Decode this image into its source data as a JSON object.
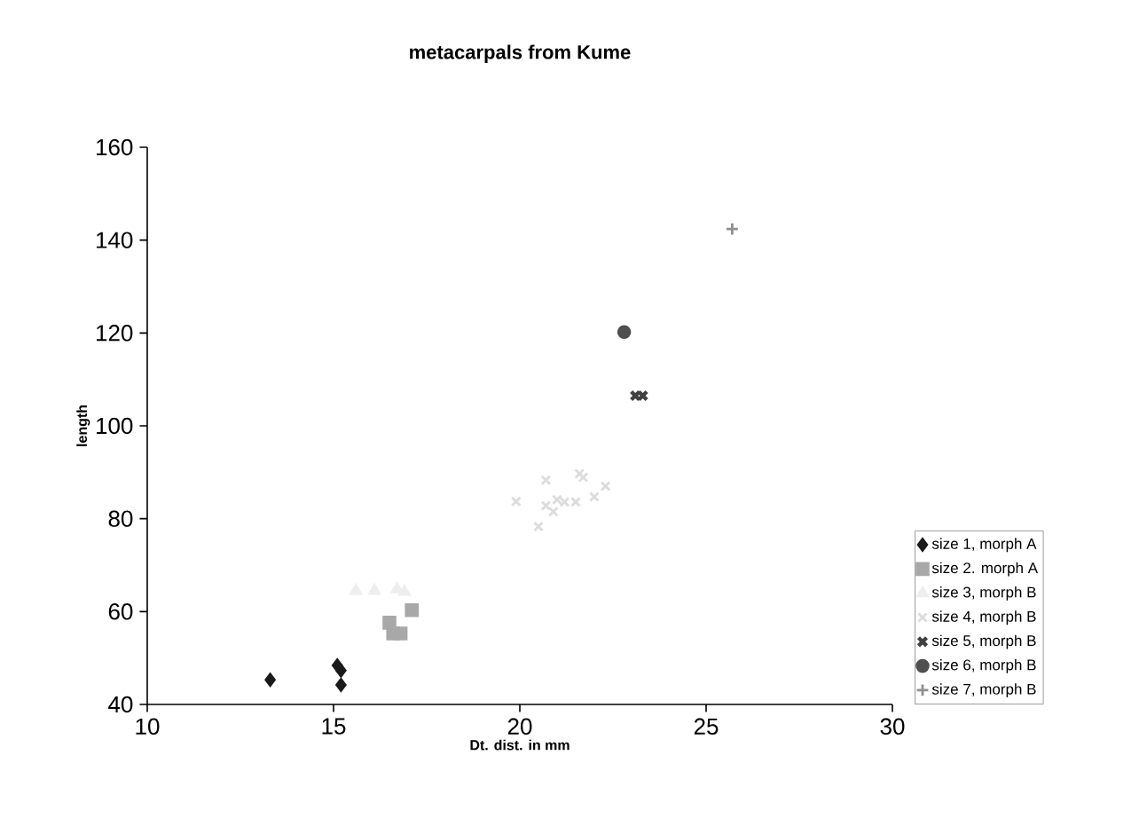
{
  "chart_data": {
    "type": "scatter",
    "title": "metacarpals from Kume",
    "xlabel": "Dt. dist. in mm",
    "ylabel": "length",
    "xlim": [
      10,
      30
    ],
    "xticks": [
      10,
      15,
      20,
      25,
      30
    ],
    "ylim": [
      40,
      160
    ],
    "yticks": [
      40,
      60,
      80,
      100,
      120,
      140,
      160
    ],
    "grid": false,
    "legend": "right",
    "series": [
      {
        "name": "size 1, morph A",
        "color": "#1a1a1a",
        "marker": "diamond",
        "x": [
          13.3,
          15.1,
          15.2,
          15.2
        ],
        "values": [
          45.3,
          48.4,
          47.3,
          44.2
        ]
      },
      {
        "name": "size 2. morph A",
        "color": "#a8a8a8",
        "marker": "square",
        "x": [
          17.1,
          16.5,
          16.6,
          16.8
        ],
        "values": [
          60.3,
          57.6,
          55.3,
          55.3
        ]
      },
      {
        "name": "size 3, morph B",
        "color": "#eeeeee",
        "marker": "triangle",
        "x": [
          15.6,
          16.1,
          16.7,
          16.9
        ],
        "values": [
          64.5,
          64.5,
          64.8,
          64.3
        ]
      },
      {
        "name": "size 4, morph B",
        "color": "#dcdcdc",
        "marker": "cross",
        "x": [
          19.9,
          20.7,
          20.5,
          20.7,
          21.0,
          21.2,
          21.5,
          21.6,
          21.7,
          22.0,
          22.3,
          20.9
        ],
        "values": [
          83.7,
          88.3,
          78.3,
          82.8,
          84.1,
          83.6,
          83.6,
          89.7,
          88.9,
          84.7,
          87.0,
          81.5
        ]
      },
      {
        "name": "size 5, morph B",
        "color": "#404040",
        "marker": "cross",
        "x": [
          23.1,
          23.3
        ],
        "values": [
          106.5,
          106.5
        ]
      },
      {
        "name": "size 6, morph B",
        "color": "#505050",
        "marker": "circle",
        "x": [
          22.8
        ],
        "values": [
          120.2
        ]
      },
      {
        "name": "size 7, morph B",
        "color": "#909090",
        "marker": "plus",
        "x": [
          25.7
        ],
        "values": [
          142.4
        ]
      }
    ]
  }
}
